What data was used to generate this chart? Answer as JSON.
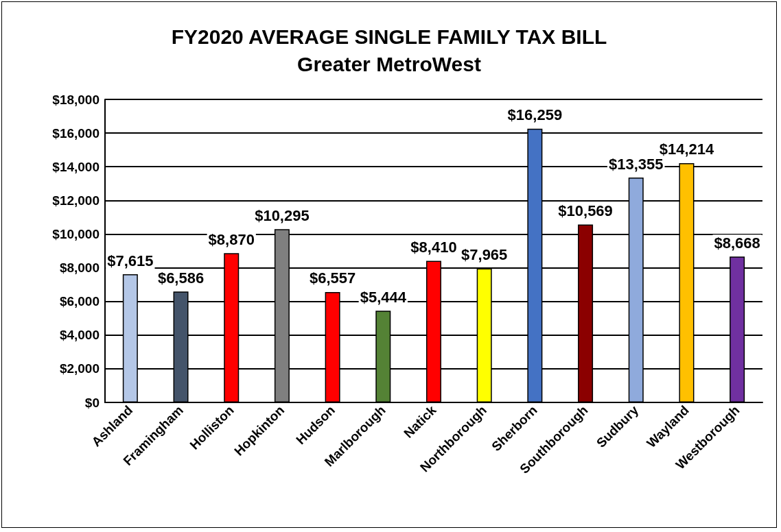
{
  "chart_data": {
    "type": "bar",
    "title": "FY2020 AVERAGE SINGLE FAMILY TAX BILL",
    "subtitle": "Greater MetroWest",
    "categories": [
      "Ashland",
      "Framingham",
      "Holliston",
      "Hopkinton",
      "Hudson",
      "Marlborough",
      "Natick",
      "Northborough",
      "Sherborn",
      "Southborough",
      "Sudbury",
      "Wayland",
      "Westborough"
    ],
    "values": [
      7615,
      6586,
      8870,
      10295,
      6557,
      5444,
      8410,
      7965,
      16259,
      10569,
      13355,
      14214,
      8668
    ],
    "value_labels": [
      "$7,615",
      "$6,586",
      "$8,870",
      "$10,295",
      "$6,557",
      "$5,444",
      "$8,410",
      "$7,965",
      "$16,259",
      "$10,569",
      "$13,355",
      "$14,214",
      "$8,668"
    ],
    "colors": [
      "#b4c7e7",
      "#44546a",
      "#ff0000",
      "#7f7f7f",
      "#ff0000",
      "#548235",
      "#ff0000",
      "#ffff00",
      "#4472c4",
      "#8b0000",
      "#8faadc",
      "#ffc000",
      "#7030a0"
    ],
    "ylim": [
      0,
      18000
    ],
    "yticks": [
      {
        "value": 0,
        "label": "$0"
      },
      {
        "value": 2000,
        "label": "$2,000"
      },
      {
        "value": 4000,
        "label": "$4,000"
      },
      {
        "value": 6000,
        "label": "$6,000"
      },
      {
        "value": 8000,
        "label": "$8,000"
      },
      {
        "value": 10000,
        "label": "$10,000"
      },
      {
        "value": 12000,
        "label": "$12,000"
      },
      {
        "value": 14000,
        "label": "$14,000"
      },
      {
        "value": 16000,
        "label": "$16,000"
      },
      {
        "value": 18000,
        "label": "$18,000"
      }
    ],
    "grid": "y"
  }
}
